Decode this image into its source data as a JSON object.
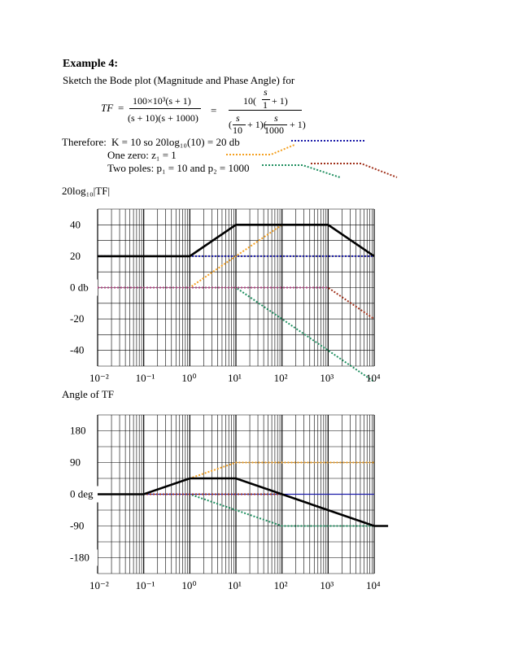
{
  "heading": "Example 4:",
  "intro": "Sketch the Bode plot (Magnitude and Phase Angle) for",
  "equation": {
    "lhs": "TF",
    "equals": "=",
    "num1": "100×10³(s + 1)",
    "den1": "(s + 10)(s + 1000)",
    "equals2": "=",
    "num2_coef": "10(",
    "num2_frac_top": "s",
    "num2_frac_bottom": "1",
    "num2_tail": "+ 1)",
    "den2_open": "(",
    "den2_f1_top": "s",
    "den2_f1_bottom": "10",
    "den2_mid": "+ 1)(",
    "den2_f2_top": "s",
    "den2_f2_bottom": "1000",
    "den2_tail": "+ 1)"
  },
  "notes": {
    "therefore": "Therefore:",
    "k_text": "K = 10     so   20log₁₀(10) = 20 db",
    "zero_text": "One zero:   z₁ = 1",
    "poles_text": "Two poles:   p₁ = 10  and  p₂ = 1000"
  },
  "colors": {
    "constant": "#1a1aa8",
    "zero": "#f4a020",
    "pole1": "#1f8f60",
    "pole2": "#a0301a",
    "total": "#000000",
    "pink": "#b04080"
  },
  "magnitude_label": "20log₁₀|TF|",
  "phase_label": "Angle of  TF",
  "chart_data": [
    {
      "type": "line",
      "title": "",
      "xscale": "log",
      "xlim": [
        0.01,
        10000
      ],
      "ylim": [
        -50,
        50
      ],
      "x_ticks": [
        "10⁻²",
        "10⁻¹",
        "10⁰",
        "10¹",
        "10²",
        "10³",
        "10⁴"
      ],
      "y_ticks": [
        "40",
        "20",
        "0 db",
        "-20",
        "-40"
      ],
      "y_tick_values": [
        40,
        20,
        0,
        -20,
        -40
      ],
      "grid": true,
      "series": [
        {
          "role": "constant",
          "color": "#1a1aa8",
          "style": "dotted",
          "x": [
            0.01,
            10000
          ],
          "y": [
            20,
            20
          ]
        },
        {
          "role": "zero",
          "color": "#f4a020",
          "style": "dotted",
          "x": [
            0.01,
            1,
            100
          ],
          "y": [
            0,
            0,
            40
          ]
        },
        {
          "role": "pole1",
          "color": "#1f8f60",
          "style": "dotted",
          "x": [
            0.01,
            10,
            10000
          ],
          "y": [
            0,
            0,
            -60
          ]
        },
        {
          "role": "pole2",
          "color": "#a0301a",
          "style": "dotted",
          "x": [
            0.01,
            1000,
            10000
          ],
          "y": [
            0,
            0,
            -20
          ]
        },
        {
          "role": "pink",
          "color": "#b04080",
          "style": "dotted",
          "x": [
            0.01,
            1000
          ],
          "y": [
            0,
            0
          ]
        },
        {
          "role": "total",
          "color": "#000000",
          "style": "solid",
          "x": [
            0.01,
            1,
            10,
            1000,
            10000
          ],
          "y": [
            20,
            20,
            40,
            40,
            20
          ]
        }
      ]
    },
    {
      "type": "line",
      "title": "",
      "xscale": "log",
      "xlim": [
        0.01,
        10000
      ],
      "ylim": [
        -225,
        225
      ],
      "x_ticks": [
        "10⁻²",
        "10⁻¹",
        "10⁰",
        "10¹",
        "10²",
        "10³",
        "10⁴"
      ],
      "y_ticks": [
        "180",
        "90",
        "0 deg",
        "-90",
        "-180"
      ],
      "y_tick_values": [
        180,
        90,
        0,
        -90,
        -180
      ],
      "grid": true,
      "series": [
        {
          "role": "constant",
          "color": "#1a1aa8",
          "style": "solid-thin",
          "x": [
            0.01,
            10000
          ],
          "y": [
            0,
            0
          ]
        },
        {
          "role": "zero",
          "color": "#f4a020",
          "style": "dotted",
          "x": [
            0.01,
            0.1,
            10,
            10000
          ],
          "y": [
            0,
            0,
            90,
            90
          ]
        },
        {
          "role": "pole1",
          "color": "#1f8f60",
          "style": "dotted",
          "x": [
            0.01,
            1,
            100,
            10000
          ],
          "y": [
            0,
            0,
            -90,
            -90
          ]
        },
        {
          "role": "pole2",
          "color": "#a0301a",
          "style": "dotted",
          "x": [
            0.01,
            100,
            10000
          ],
          "y": [
            0,
            0,
            -90
          ]
        },
        {
          "role": "total",
          "color": "#000000",
          "style": "solid",
          "x": [
            0.01,
            0.1,
            1,
            10,
            10000,
            20000
          ],
          "y": [
            0,
            0,
            45,
            45,
            -90,
            -90
          ]
        }
      ]
    }
  ]
}
